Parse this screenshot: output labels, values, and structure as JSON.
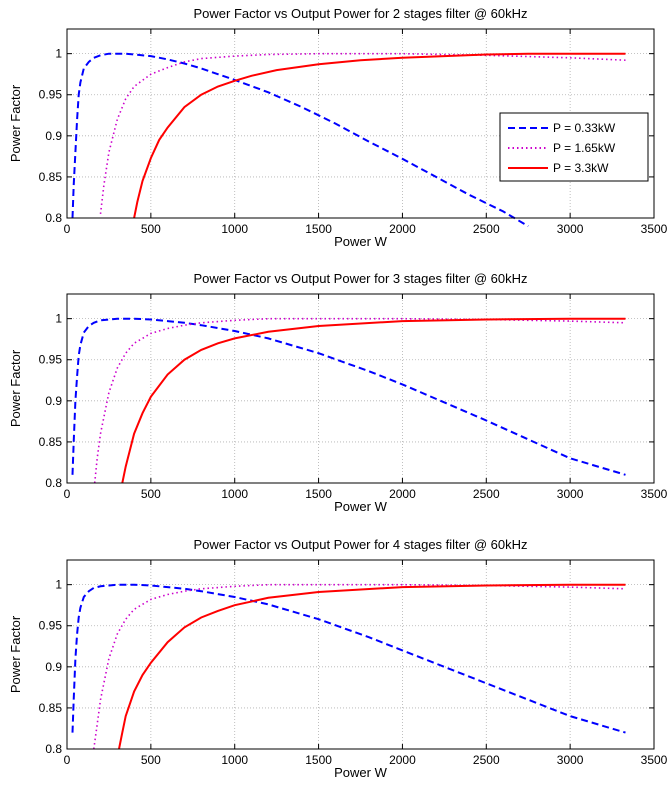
{
  "chart_data": [
    {
      "type": "line",
      "title": "Power Factor vs Output Power for 2 stages filter @ 60kHz",
      "xlabel": "Power W",
      "ylabel": "Power Factor",
      "xlim": [
        0,
        3500
      ],
      "ylim": [
        0.8,
        1.03
      ],
      "xticks": [
        0,
        500,
        1000,
        1500,
        2000,
        2500,
        3000,
        3500
      ],
      "yticks": [
        0.8,
        0.85,
        0.9,
        0.95,
        1
      ],
      "ytick_labels": [
        "0.8",
        "0.85",
        "0.9",
        "0.95",
        "1"
      ],
      "grid": true,
      "legend": {
        "visible": true,
        "placement": "right, middle"
      },
      "series": [
        {
          "name": "P = 0.33kW",
          "color": "#0000ff",
          "style": "dashed",
          "x": [
            33,
            40,
            50,
            60,
            70,
            80,
            100,
            130,
            160,
            200,
            250,
            300,
            350,
            400,
            500,
            600,
            700,
            800,
            900,
            1000,
            1200,
            1400,
            1600,
            1800,
            2000,
            2200,
            2400,
            2600,
            2750
          ],
          "y": [
            0.8,
            0.84,
            0.88,
            0.92,
            0.95,
            0.965,
            0.982,
            0.99,
            0.995,
            0.998,
            1.0,
            1.0,
            1.0,
            0.999,
            0.997,
            0.993,
            0.988,
            0.982,
            0.975,
            0.968,
            0.953,
            0.935,
            0.915,
            0.893,
            0.872,
            0.85,
            0.828,
            0.808,
            0.79
          ]
        },
        {
          "name": "P = 1.65kW",
          "color": "#cc00cc",
          "style": "dotted",
          "x": [
            200,
            220,
            250,
            300,
            350,
            400,
            500,
            600,
            700,
            800,
            1000,
            1200,
            1500,
            2000,
            2500,
            3000,
            3330
          ],
          "y": [
            0.805,
            0.84,
            0.88,
            0.92,
            0.945,
            0.96,
            0.975,
            0.983,
            0.99,
            0.994,
            0.997,
            0.999,
            1.0,
            1.0,
            0.998,
            0.995,
            0.992
          ]
        },
        {
          "name": "P = 3.3kW",
          "color": "#ff0000",
          "style": "solid",
          "x": [
            400,
            420,
            450,
            500,
            550,
            600,
            700,
            800,
            900,
            1000,
            1100,
            1250,
            1500,
            1750,
            2000,
            2250,
            2500,
            2750,
            3000,
            3330
          ],
          "y": [
            0.8,
            0.82,
            0.845,
            0.873,
            0.895,
            0.91,
            0.935,
            0.95,
            0.96,
            0.967,
            0.973,
            0.98,
            0.987,
            0.992,
            0.995,
            0.997,
            0.999,
            1.0,
            1.0,
            1.0
          ]
        }
      ]
    },
    {
      "type": "line",
      "title": "Power Factor vs Output Power for 3 stages filter @ 60kHz",
      "xlabel": "Power W",
      "ylabel": "Power Factor",
      "xlim": [
        0,
        3500
      ],
      "ylim": [
        0.8,
        1.03
      ],
      "xticks": [
        0,
        500,
        1000,
        1500,
        2000,
        2500,
        3000,
        3500
      ],
      "yticks": [
        0.8,
        0.85,
        0.9,
        0.95,
        1
      ],
      "ytick_labels": [
        "0.8",
        "0.85",
        "0.9",
        "0.95",
        "1"
      ],
      "grid": true,
      "legend": {
        "visible": false,
        "placement": ""
      },
      "series": [
        {
          "name": "P = 0.33kW",
          "color": "#0000ff",
          "style": "dashed",
          "x": [
            33,
            40,
            50,
            60,
            70,
            80,
            100,
            130,
            160,
            200,
            250,
            300,
            350,
            400,
            500,
            600,
            700,
            800,
            1000,
            1200,
            1500,
            1800,
            2000,
            2500,
            3000,
            3330
          ],
          "y": [
            0.81,
            0.85,
            0.9,
            0.93,
            0.955,
            0.968,
            0.983,
            0.991,
            0.995,
            0.998,
            0.999,
            1.0,
            1.0,
            1.0,
            0.999,
            0.997,
            0.995,
            0.992,
            0.985,
            0.976,
            0.958,
            0.936,
            0.92,
            0.876,
            0.83,
            0.81
          ]
        },
        {
          "name": "P = 1.65kW",
          "color": "#cc00cc",
          "style": "dotted",
          "x": [
            165,
            180,
            200,
            250,
            300,
            350,
            400,
            500,
            600,
            700,
            800,
            1000,
            1200,
            1500,
            2000,
            2500,
            3000,
            3330
          ],
          "y": [
            0.8,
            0.83,
            0.86,
            0.91,
            0.94,
            0.958,
            0.97,
            0.982,
            0.988,
            0.992,
            0.995,
            0.998,
            1.0,
            1.0,
            1.0,
            0.999,
            0.997,
            0.995
          ]
        },
        {
          "name": "P = 3.3kW",
          "color": "#ff0000",
          "style": "solid",
          "x": [
            330,
            350,
            400,
            450,
            500,
            600,
            700,
            800,
            900,
            1000,
            1200,
            1500,
            2000,
            2500,
            3000,
            3330
          ],
          "y": [
            0.8,
            0.82,
            0.86,
            0.885,
            0.905,
            0.932,
            0.95,
            0.962,
            0.97,
            0.976,
            0.984,
            0.991,
            0.997,
            0.999,
            1.0,
            1.0
          ]
        }
      ]
    },
    {
      "type": "line",
      "title": "Power Factor vs Output Power for 4 stages filter @ 60kHz",
      "xlabel": "Power W",
      "ylabel": "Power Factor",
      "xlim": [
        0,
        3500
      ],
      "ylim": [
        0.8,
        1.03
      ],
      "xticks": [
        0,
        500,
        1000,
        1500,
        2000,
        2500,
        3000,
        3500
      ],
      "yticks": [
        0.8,
        0.85,
        0.9,
        0.95,
        1
      ],
      "ytick_labels": [
        "0.8",
        "0.85",
        "0.9",
        "0.95",
        "1"
      ],
      "grid": true,
      "legend": {
        "visible": false,
        "placement": ""
      },
      "series": [
        {
          "name": "P = 0.33kW",
          "color": "#0000ff",
          "style": "dashed",
          "x": [
            33,
            40,
            50,
            60,
            70,
            80,
            100,
            130,
            160,
            200,
            250,
            300,
            350,
            400,
            500,
            600,
            700,
            800,
            1000,
            1200,
            1500,
            1800,
            2000,
            2500,
            3000,
            3330
          ],
          "y": [
            0.82,
            0.86,
            0.91,
            0.94,
            0.96,
            0.972,
            0.985,
            0.992,
            0.996,
            0.998,
            0.999,
            1.0,
            1.0,
            1.0,
            0.999,
            0.997,
            0.995,
            0.992,
            0.985,
            0.976,
            0.958,
            0.936,
            0.92,
            0.88,
            0.84,
            0.82
          ]
        },
        {
          "name": "P = 1.65kW",
          "color": "#cc00cc",
          "style": "dotted",
          "x": [
            160,
            180,
            200,
            250,
            300,
            350,
            400,
            500,
            600,
            700,
            800,
            1000,
            1200,
            1500,
            2000,
            2500,
            3000,
            3330
          ],
          "y": [
            0.8,
            0.83,
            0.86,
            0.91,
            0.94,
            0.958,
            0.97,
            0.982,
            0.988,
            0.992,
            0.995,
            0.998,
            1.0,
            1.0,
            1.0,
            0.999,
            0.997,
            0.995
          ]
        },
        {
          "name": "P = 3.3kW",
          "color": "#ff0000",
          "style": "solid",
          "x": [
            310,
            330,
            350,
            400,
            450,
            500,
            600,
            700,
            800,
            900,
            1000,
            1200,
            1500,
            2000,
            2500,
            3000,
            3330
          ],
          "y": [
            0.8,
            0.82,
            0.84,
            0.87,
            0.89,
            0.905,
            0.93,
            0.948,
            0.96,
            0.968,
            0.975,
            0.984,
            0.991,
            0.997,
            0.999,
            1.0,
            1.0
          ]
        }
      ]
    }
  ]
}
